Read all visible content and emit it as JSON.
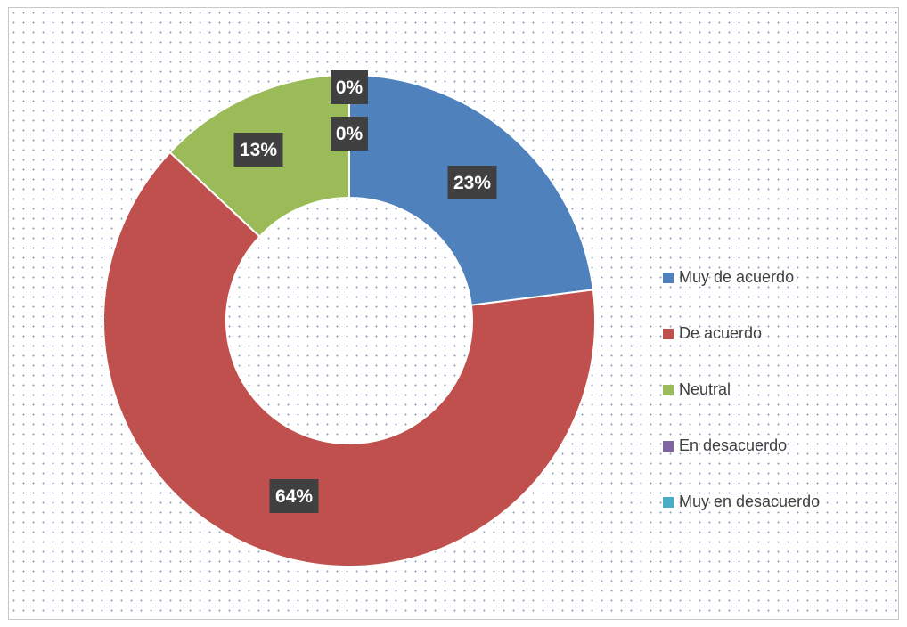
{
  "chart_data": {
    "type": "pie",
    "donut": true,
    "categories": [
      "Muy de acuerdo",
      "De acuerdo",
      "Neutral",
      "En desacuerdo",
      "Muy en desacuerdo"
    ],
    "values": [
      23,
      64,
      13,
      0,
      0
    ],
    "data_labels": [
      "23%",
      "64%",
      "13%",
      "0%",
      "0%"
    ],
    "colors": [
      "#4f81bd",
      "#c0504d",
      "#9bbb59",
      "#8064a2",
      "#4bacc6"
    ],
    "legend_position": "right",
    "title": ""
  }
}
